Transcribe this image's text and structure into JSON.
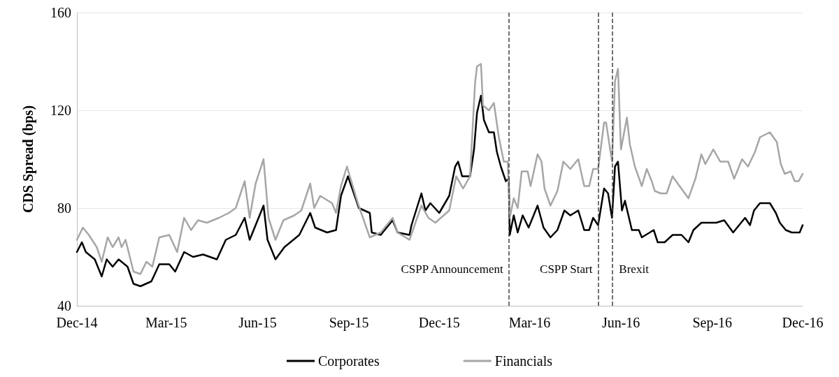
{
  "chart_data": {
    "type": "line",
    "ylabel": "CDS Spread (bps)",
    "xlim": [
      "2014-12-01",
      "2016-12-01"
    ],
    "ylim": [
      40,
      160
    ],
    "yticks": [
      40,
      80,
      120,
      160
    ],
    "xticks": [
      {
        "value": "2014-12-01",
        "label": "Dec-14"
      },
      {
        "value": "2015-03-01",
        "label": "Mar-15"
      },
      {
        "value": "2015-06-01",
        "label": "Jun-15"
      },
      {
        "value": "2015-09-01",
        "label": "Sep-15"
      },
      {
        "value": "2015-12-01",
        "label": "Dec-15"
      },
      {
        "value": "2016-03-01",
        "label": "Mar-16"
      },
      {
        "value": "2016-06-01",
        "label": "Jun-16"
      },
      {
        "value": "2016-09-01",
        "label": "Sep-16"
      },
      {
        "value": "2016-12-01",
        "label": "Dec-16"
      }
    ],
    "grid": "y",
    "legend": "bottom",
    "marker": "none",
    "line_style": "solid",
    "ref_lines": [
      {
        "axis": "x",
        "value": "2016-02-09",
        "label": "CSPP Announcement",
        "color": "#404040",
        "line_style": "dashed"
      },
      {
        "axis": "x",
        "value": "2016-05-09",
        "label": "CSPP Start",
        "color": "#404040",
        "line_style": "dashed"
      },
      {
        "axis": "x",
        "value": "2016-05-23",
        "label": "Brexit",
        "color": "#404040",
        "line_style": "dashed"
      }
    ],
    "series": [
      {
        "name": "Corporates",
        "color": "#000000",
        "x": [
          "2014-12-01",
          "2014-12-06",
          "2014-12-10",
          "2014-12-19",
          "2014-12-26",
          "2014-12-31",
          "2015-01-06",
          "2015-01-12",
          "2015-01-21",
          "2015-01-27",
          "2015-02-03",
          "2015-02-14",
          "2015-02-22",
          "2015-03-04",
          "2015-03-10",
          "2015-03-19",
          "2015-03-28",
          "2015-04-07",
          "2015-04-21",
          "2015-04-30",
          "2015-05-10",
          "2015-05-19",
          "2015-05-24",
          "2015-06-01",
          "2015-06-07",
          "2015-06-11",
          "2015-06-19",
          "2015-06-28",
          "2015-07-13",
          "2015-07-24",
          "2015-07-29",
          "2015-08-10",
          "2015-08-19",
          "2015-08-24",
          "2015-08-31",
          "2015-09-11",
          "2015-09-22",
          "2015-09-24",
          "2015-10-03",
          "2015-10-15",
          "2015-10-20",
          "2015-11-01",
          "2015-11-03",
          "2015-11-13",
          "2015-11-17",
          "2015-11-22",
          "2015-12-01",
          "2015-12-11",
          "2015-12-17",
          "2015-12-20",
          "2015-12-24",
          "2016-01-01",
          "2016-01-05",
          "2016-01-08",
          "2016-01-12",
          "2016-01-15",
          "2016-01-20",
          "2016-01-25",
          "2016-01-28",
          "2016-02-01",
          "2016-02-06",
          "2016-02-09",
          "2016-02-10",
          "2016-02-14",
          "2016-02-18",
          "2016-02-23",
          "2016-02-29",
          "2016-03-09",
          "2016-03-15",
          "2016-03-22",
          "2016-03-29",
          "2016-04-05",
          "2016-04-11",
          "2016-04-19",
          "2016-04-25",
          "2016-04-30",
          "2016-05-04",
          "2016-05-09",
          "2016-05-15",
          "2016-05-19",
          "2016-05-23",
          "2016-05-26",
          "2016-05-29",
          "2016-06-02",
          "2016-06-05",
          "2016-06-12",
          "2016-06-19",
          "2016-06-22",
          "2016-07-04",
          "2016-07-08",
          "2016-07-15",
          "2016-07-23",
          "2016-08-01",
          "2016-08-08",
          "2016-08-13",
          "2016-08-21",
          "2016-08-27",
          "2016-09-05",
          "2016-09-13",
          "2016-09-22",
          "2016-10-04",
          "2016-10-09",
          "2016-10-13",
          "2016-10-19",
          "2016-10-29",
          "2016-11-04",
          "2016-11-08",
          "2016-11-14",
          "2016-11-20",
          "2016-11-28",
          "2016-12-01"
        ],
        "values": [
          62,
          66,
          62,
          59,
          52,
          59,
          56,
          59,
          56,
          49,
          48,
          50,
          57,
          57,
          54,
          62,
          60,
          61,
          59,
          67,
          69,
          76,
          67,
          75,
          81,
          67,
          59,
          64,
          69,
          78,
          72,
          70,
          71,
          85,
          93,
          80,
          78,
          70,
          69,
          75,
          70,
          69,
          73,
          86,
          79,
          82,
          78,
          85,
          97,
          99,
          93,
          93,
          104,
          119,
          126,
          116,
          111,
          111,
          103,
          97,
          91,
          92,
          69,
          77,
          70,
          77,
          72,
          81,
          72,
          68,
          71,
          79,
          77,
          79,
          71,
          71,
          76,
          73,
          88,
          86,
          76,
          97,
          99,
          79,
          83,
          71,
          71,
          68,
          71,
          66,
          66,
          69,
          69,
          66,
          71,
          74,
          74,
          74,
          75,
          70,
          76,
          73,
          79,
          82,
          82,
          78,
          74,
          71,
          70,
          70,
          73
        ]
      },
      {
        "name": "Financials",
        "color": "#a6a6a6",
        "x": [
          "2014-12-01",
          "2014-12-07",
          "2014-12-13",
          "2014-12-21",
          "2014-12-26",
          "2015-01-01",
          "2015-01-06",
          "2015-01-12",
          "2015-01-15",
          "2015-01-19",
          "2015-01-27",
          "2015-02-03",
          "2015-02-09",
          "2015-02-15",
          "2015-02-22",
          "2015-03-04",
          "2015-03-12",
          "2015-03-19",
          "2015-03-26",
          "2015-04-02",
          "2015-04-11",
          "2015-04-23",
          "2015-05-03",
          "2015-05-10",
          "2015-05-19",
          "2015-05-24",
          "2015-05-30",
          "2015-06-07",
          "2015-06-12",
          "2015-06-19",
          "2015-06-27",
          "2015-07-08",
          "2015-07-15",
          "2015-07-24",
          "2015-07-28",
          "2015-08-03",
          "2015-08-15",
          "2015-08-19",
          "2015-08-24",
          "2015-08-30",
          "2015-09-10",
          "2015-09-22",
          "2015-10-03",
          "2015-10-15",
          "2015-10-20",
          "2015-11-01",
          "2015-11-13",
          "2015-11-20",
          "2015-11-27",
          "2015-12-11",
          "2015-12-18",
          "2015-12-25",
          "2016-01-01",
          "2016-01-06",
          "2016-01-08",
          "2016-01-12",
          "2016-01-14",
          "2016-01-20",
          "2016-01-25",
          "2016-01-30",
          "2016-02-04",
          "2016-02-08",
          "2016-02-10",
          "2016-02-14",
          "2016-02-18",
          "2016-02-22",
          "2016-02-28",
          "2016-03-02",
          "2016-03-09",
          "2016-03-13",
          "2016-03-16",
          "2016-03-22",
          "2016-03-29",
          "2016-04-04",
          "2016-04-11",
          "2016-04-19",
          "2016-04-25",
          "2016-04-30",
          "2016-05-04",
          "2016-05-09",
          "2016-05-15",
          "2016-05-17",
          "2016-05-23",
          "2016-05-26",
          "2016-05-29",
          "2016-06-01",
          "2016-06-07",
          "2016-06-10",
          "2016-06-15",
          "2016-06-22",
          "2016-06-27",
          "2016-07-02",
          "2016-07-05",
          "2016-07-11",
          "2016-07-17",
          "2016-07-23",
          "2016-07-30",
          "2016-08-08",
          "2016-08-15",
          "2016-08-21",
          "2016-08-25",
          "2016-09-02",
          "2016-09-09",
          "2016-09-17",
          "2016-09-23",
          "2016-10-01",
          "2016-10-07",
          "2016-10-14",
          "2016-10-19",
          "2016-10-29",
          "2016-11-05",
          "2016-11-09",
          "2016-11-13",
          "2016-11-19",
          "2016-11-23",
          "2016-11-27",
          "2016-12-01"
        ],
        "values": [
          67,
          72,
          69,
          64,
          58,
          68,
          64,
          68,
          64,
          67,
          54,
          53,
          58,
          56,
          68,
          69,
          62,
          76,
          71,
          75,
          74,
          76,
          78,
          80,
          91,
          76,
          90,
          100,
          76,
          67,
          75,
          77,
          79,
          90,
          80,
          85,
          82,
          78,
          89,
          97,
          82,
          68,
          70,
          76,
          70,
          67,
          81,
          76,
          74,
          79,
          93,
          88,
          93,
          131,
          138,
          139,
          122,
          120,
          123,
          109,
          99,
          99,
          76,
          84,
          80,
          95,
          95,
          89,
          102,
          99,
          88,
          81,
          87,
          99,
          96,
          100,
          89,
          89,
          96,
          96,
          115,
          115,
          99,
          132,
          137,
          104,
          117,
          106,
          97,
          89,
          96,
          91,
          87,
          86,
          86,
          93,
          89,
          84,
          92,
          102,
          98,
          104,
          99,
          99,
          92,
          100,
          97,
          103,
          109,
          111,
          107,
          98,
          94,
          95,
          91,
          91,
          94
        ]
      }
    ]
  }
}
